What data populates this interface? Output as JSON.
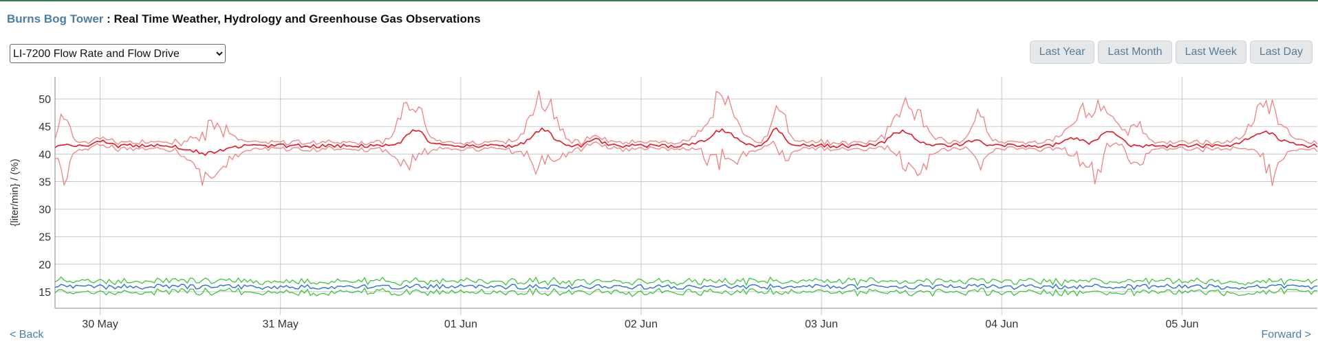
{
  "header": {
    "site_name": "Burns Bog Tower",
    "separator": " : ",
    "title": "Real Time Weather, Hydrology and Greenhouse Gas Observations"
  },
  "selector": {
    "selected": "LI-7200 Flow Rate and Flow Drive"
  },
  "range_buttons": [
    "Last Year",
    "Last Month",
    "Last Week",
    "Last Day"
  ],
  "nav": {
    "back": "< Back",
    "forward": "Forward >"
  },
  "chart_data": {
    "type": "line",
    "ylabel": "{liter/min} / (%)",
    "xlabel": "",
    "ylim": [
      12,
      54
    ],
    "yticks": [
      15,
      20,
      25,
      30,
      35,
      40,
      45,
      50
    ],
    "x_range_days": [
      29.75,
      36.75
    ],
    "xticks": [
      {
        "day": 30,
        "label": "30 May"
      },
      {
        "day": 31,
        "label": "31 May"
      },
      {
        "day": 32,
        "label": "01 Jun"
      },
      {
        "day": 33,
        "label": "02 Jun"
      },
      {
        "day": 34,
        "label": "03 Jun"
      },
      {
        "day": 35,
        "label": "04 Jun"
      },
      {
        "day": 36,
        "label": "05 Jun"
      }
    ],
    "grid": true,
    "colors": {
      "flow_drive_mean": "#e8141e",
      "flow_drive_range": "#f08080",
      "flow_rate_mean": "#2a6fd6",
      "flow_rate_range": "#3cc43c",
      "grid": "#c8c8c8",
      "axis_text": "#333333"
    },
    "series": [
      {
        "key": "flow_drive",
        "baseline": 41.5,
        "mean_bumps": [
          {
            "day": 30.0,
            "amp": 0.9,
            "w": 0.05
          },
          {
            "day": 30.6,
            "amp": -1.4,
            "w": 0.12
          },
          {
            "day": 31.75,
            "amp": 2.8,
            "w": 0.07
          },
          {
            "day": 32.45,
            "amp": 2.9,
            "w": 0.08
          },
          {
            "day": 32.75,
            "amp": 1.2,
            "w": 0.05
          },
          {
            "day": 33.45,
            "amp": 2.8,
            "w": 0.1
          },
          {
            "day": 33.75,
            "amp": 3.0,
            "w": 0.05
          },
          {
            "day": 34.45,
            "amp": 2.7,
            "w": 0.09
          },
          {
            "day": 34.85,
            "amp": 1.0,
            "w": 0.06
          },
          {
            "day": 35.4,
            "amp": 1.5,
            "w": 0.07
          },
          {
            "day": 35.6,
            "amp": 2.8,
            "w": 0.07
          },
          {
            "day": 36.45,
            "amp": 2.5,
            "w": 0.11
          }
        ],
        "spread_bumps": [
          {
            "day": 29.8,
            "amp": 5.5,
            "w": 0.04
          },
          {
            "day": 30.62,
            "amp": 4.5,
            "w": 0.12
          },
          {
            "day": 31.72,
            "amp": 6.0,
            "w": 0.08
          },
          {
            "day": 32.45,
            "amp": 6.5,
            "w": 0.1
          },
          {
            "day": 33.45,
            "amp": 6.5,
            "w": 0.1
          },
          {
            "day": 33.78,
            "amp": 4.0,
            "w": 0.05
          },
          {
            "day": 34.5,
            "amp": 6.5,
            "w": 0.1
          },
          {
            "day": 34.88,
            "amp": 4.0,
            "w": 0.05
          },
          {
            "day": 35.5,
            "amp": 5.5,
            "w": 0.12
          },
          {
            "day": 35.75,
            "amp": 4.5,
            "w": 0.05
          },
          {
            "day": 36.48,
            "amp": 6.5,
            "w": 0.1
          }
        ],
        "spread_base": 0.6,
        "noise": 0.35
      },
      {
        "key": "flow_rate",
        "baseline": 15.9,
        "mean_bumps": [],
        "spread_bumps": [],
        "spread_base": 1.0,
        "noise": 0.45
      }
    ]
  }
}
